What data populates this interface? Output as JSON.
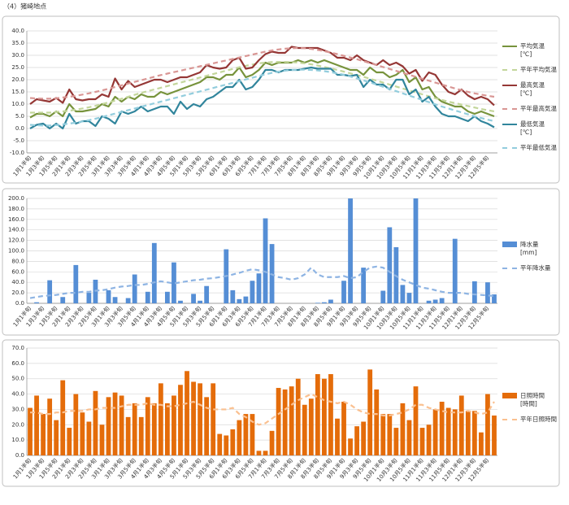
{
  "page_title": "（4）猪崎地点",
  "chart_data": [
    {
      "type": "line",
      "grid": true,
      "categories": [
        "1月1半旬",
        null,
        "1月3半旬",
        null,
        "1月5半旬",
        null,
        "2月1半旬",
        null,
        "2月3半旬",
        null,
        "2月5半旬",
        null,
        "3月1半旬",
        null,
        "3月3半旬",
        null,
        "3月5半旬",
        null,
        "4月1半旬",
        null,
        "4月3半旬",
        null,
        "4月5半旬",
        null,
        "5月1半旬",
        null,
        "5月3半旬",
        null,
        "5月5半旬",
        null,
        "6月1半旬",
        null,
        "6月3半旬",
        null,
        "6月5半旬",
        null,
        "7月1半旬",
        null,
        "7月3半旬",
        null,
        "7月5半旬",
        null,
        "8月1半旬",
        null,
        "8月3半旬",
        null,
        "8月5半旬",
        null,
        "9月1半旬",
        null,
        "9月3半旬",
        null,
        "9月5半旬",
        null,
        "10月1半旬",
        null,
        "10月3半旬",
        null,
        "10月5半旬",
        null,
        "11月1半旬",
        null,
        "11月3半旬",
        null,
        "11月5半旬",
        null,
        "12月1半旬",
        null,
        "12月3半旬",
        null,
        "12月5半旬",
        null
      ],
      "ylim": [
        -10,
        40
      ],
      "yticks": [
        {
          "value": -10,
          "label": "-10.0"
        },
        {
          "value": -5,
          "label": "-5.0"
        },
        {
          "value": 0,
          "label": "0.0"
        },
        {
          "value": 5,
          "label": "5.0"
        },
        {
          "value": 10,
          "label": "10.0"
        },
        {
          "value": 15,
          "label": "15.0"
        },
        {
          "value": 20,
          "label": "20.0"
        },
        {
          "value": 25,
          "label": "25.0"
        },
        {
          "value": 30,
          "label": "30.0"
        },
        {
          "value": 35,
          "label": "35.0"
        },
        {
          "value": 40,
          "label": "40.0"
        }
      ],
      "series": [
        {
          "name": "平均気温\n[℃]",
          "type": "line",
          "dashed": false,
          "color": "#77933c",
          "values": [
            4.5,
            6,
            6,
            5,
            7,
            5,
            10,
            7,
            7,
            7.5,
            8,
            10,
            9,
            13,
            11,
            13,
            12,
            14,
            13,
            13,
            15,
            14,
            15,
            16,
            17,
            18,
            19,
            21,
            21,
            20,
            22,
            22,
            25,
            21,
            22,
            24,
            27,
            26,
            27,
            27,
            27,
            28,
            27,
            28,
            27,
            28,
            27,
            26,
            25,
            24,
            24,
            22,
            25,
            23,
            23,
            21,
            22,
            24,
            19,
            21,
            16,
            17,
            13,
            11,
            10,
            9,
            9,
            7,
            6,
            7,
            6,
            5
          ]
        },
        {
          "name": "平年平均気温",
          "type": "line",
          "dashed": true,
          "color": "#c3d69b",
          "values": [
            6.5,
            6.5,
            6.5,
            6.5,
            6.8,
            7,
            7.3,
            7.7,
            8.2,
            8.7,
            9.3,
            10,
            10.7,
            11.4,
            12.2,
            13,
            13.8,
            14.6,
            15.3,
            16,
            16.7,
            17.4,
            18.1,
            18.8,
            19.5,
            20.2,
            20.9,
            21.6,
            22.3,
            23,
            23.7,
            24.4,
            25.1,
            25.7,
            26.2,
            26.7,
            27,
            27.2,
            27.3,
            27.3,
            27.2,
            27,
            26.7,
            26.3,
            25.8,
            25.2,
            24.6,
            24,
            23.3,
            22.6,
            21.9,
            21.2,
            20.4,
            19.6,
            18.8,
            18,
            17.2,
            16.4,
            15.6,
            14.8,
            14,
            13.2,
            12.4,
            11.7,
            11,
            10.4,
            9.8,
            9.2,
            8.6,
            8,
            7.5,
            7
          ]
        },
        {
          "name": "最高気温\n[℃]",
          "type": "line",
          "dashed": false,
          "color": "#953735",
          "values": [
            10,
            12,
            11.5,
            11,
            12.5,
            10.5,
            16,
            12,
            11.5,
            12,
            12,
            14,
            13,
            20.5,
            16,
            19.5,
            17,
            18,
            19,
            20,
            20,
            19,
            20,
            21,
            21,
            22,
            23,
            26,
            25,
            24.5,
            25,
            28,
            29,
            24.5,
            25,
            28,
            30.5,
            31.5,
            31,
            31,
            33.5,
            33,
            33,
            33,
            33,
            32,
            31,
            29,
            29,
            28,
            30,
            28,
            27,
            26,
            28,
            26,
            27,
            25.5,
            22.5,
            24,
            19.5,
            23,
            22,
            18,
            15,
            14,
            16,
            13.5,
            12,
            13,
            12,
            9.5
          ]
        },
        {
          "name": "平年最高気温",
          "type": "line",
          "dashed": true,
          "color": "#d99694",
          "values": [
            12.5,
            12.3,
            12.2,
            12.2,
            12.4,
            12.7,
            13,
            13.4,
            13.9,
            14.4,
            15,
            15.6,
            16.3,
            17,
            17.7,
            18.4,
            19.1,
            19.8,
            20.5,
            21.2,
            21.9,
            22.5,
            23.1,
            23.7,
            24.3,
            24.9,
            25.5,
            26.1,
            26.7,
            27.3,
            27.9,
            28.5,
            29.1,
            29.7,
            30.3,
            30.9,
            31.5,
            32,
            32.4,
            32.7,
            32.9,
            33,
            32.9,
            32.6,
            32.2,
            31.7,
            31.1,
            30.5,
            29.8,
            29.1,
            28.4,
            27.6,
            26.8,
            26,
            25.2,
            24.4,
            23.6,
            22.8,
            22,
            21.2,
            20.4,
            19.6,
            18.8,
            18,
            17.2,
            16.4,
            15.7,
            15,
            14.4,
            13.9,
            13.4,
            13
          ]
        },
        {
          "name": "最低気温\n[℃]",
          "type": "line",
          "dashed": false,
          "color": "#31859c",
          "values": [
            0,
            1.5,
            2,
            0,
            2,
            0,
            6,
            2,
            3,
            3,
            1,
            5,
            4,
            2,
            7,
            6,
            7,
            9,
            7,
            8,
            9,
            9,
            6,
            11,
            8,
            10,
            9,
            12,
            13,
            15,
            17,
            17,
            20,
            16,
            17,
            20,
            24,
            24,
            23,
            24,
            24,
            24,
            24.5,
            25,
            24.5,
            24.5,
            24.5,
            22,
            22,
            21.5,
            22,
            17,
            20,
            18,
            18,
            16,
            20,
            20,
            14,
            16,
            11,
            13,
            9,
            6,
            5,
            5,
            4,
            3,
            5,
            3,
            2,
            0.5
          ]
        },
        {
          "name": "平年最低気温",
          "type": "line",
          "dashed": true,
          "color": "#93cddd",
          "values": [
            1.5,
            1.3,
            1.2,
            1.2,
            1.4,
            1.7,
            2,
            2.4,
            2.9,
            3.4,
            4,
            4.7,
            5.4,
            6.1,
            6.8,
            7.5,
            8.2,
            8.9,
            9.6,
            10.3,
            11,
            11.7,
            12.4,
            13.1,
            13.8,
            14.5,
            15.2,
            15.9,
            16.6,
            17.3,
            18,
            18.7,
            19.4,
            20.1,
            20.8,
            21.5,
            22.2,
            22.8,
            23.3,
            23.7,
            24,
            24.1,
            24.1,
            24,
            23.8,
            23.5,
            23.1,
            22.6,
            22,
            21.3,
            20.5,
            19.7,
            18.9,
            18,
            17.1,
            16.2,
            15.3,
            14.4,
            13.5,
            12.6,
            11.7,
            10.8,
            9.9,
            9,
            8.2,
            7.4,
            6.6,
            5.8,
            5,
            4.3,
            3.6,
            3
          ]
        }
      ]
    },
    {
      "type": "bar",
      "grid": true,
      "categories": [
        "1月1半旬",
        null,
        "1月3半旬",
        null,
        "1月5半旬",
        null,
        "2月1半旬",
        null,
        "2月3半旬",
        null,
        "2月5半旬",
        null,
        "3月1半旬",
        null,
        "3月3半旬",
        null,
        "3月5半旬",
        null,
        "4月1半旬",
        null,
        "4月3半旬",
        null,
        "4月5半旬",
        null,
        "5月1半旬",
        null,
        "5月3半旬",
        null,
        "5月5半旬",
        null,
        "6月1半旬",
        null,
        "6月3半旬",
        null,
        "6月5半旬",
        null,
        "7月1半旬",
        null,
        "7月3半旬",
        null,
        "7月5半旬",
        null,
        "8月1半旬",
        null,
        "8月3半旬",
        null,
        "8月5半旬",
        null,
        "9月1半旬",
        null,
        "9月3半旬",
        null,
        "9月5半旬",
        null,
        "10月1半旬",
        null,
        "10月3半旬",
        null,
        "10月5半旬",
        null,
        "11月1半旬",
        null,
        "11月3半旬",
        null,
        "11月5半旬",
        null,
        "12月1半旬",
        null,
        "12月3半旬",
        null,
        "12月5半旬",
        null
      ],
      "ylim": [
        0,
        200
      ],
      "yticks": [
        {
          "value": 0,
          "label": "0.0"
        },
        {
          "value": 20,
          "label": "20.0"
        },
        {
          "value": 40,
          "label": "40.0"
        },
        {
          "value": 60,
          "label": "60.0"
        },
        {
          "value": 80,
          "label": "80.0"
        },
        {
          "value": 100,
          "label": "100.0"
        },
        {
          "value": 120,
          "label": "120.0"
        },
        {
          "value": 140,
          "label": "140.0"
        },
        {
          "value": 160,
          "label": "160.0"
        },
        {
          "value": 180,
          "label": "180.0"
        },
        {
          "value": 200,
          "label": "200.0"
        }
      ],
      "series": [
        {
          "name": "降水量\n[mm]",
          "type": "bar",
          "color": "#558ed5",
          "values": [
            0,
            2,
            0,
            44,
            0,
            12,
            0,
            73,
            0,
            20,
            45,
            0,
            25,
            12,
            0,
            10,
            55,
            0,
            22,
            115,
            0,
            22,
            78,
            5,
            0,
            18,
            5,
            33,
            0,
            0,
            103,
            25,
            8,
            13,
            43,
            57,
            162,
            113,
            0,
            0,
            0,
            0,
            0,
            0,
            1,
            2,
            7,
            0,
            43,
            200,
            0,
            68,
            0,
            0,
            24,
            145,
            107,
            35,
            20,
            200,
            0,
            5,
            7,
            10,
            0,
            123,
            0,
            0,
            42,
            0,
            40,
            17
          ]
        },
        {
          "name": "平年降水量",
          "type": "line",
          "dashed": true,
          "color": "#8eb4e3",
          "values": [
            10,
            12,
            14,
            15,
            16,
            18,
            20,
            20,
            22,
            22,
            24,
            25,
            27,
            30,
            32,
            33,
            35,
            35,
            37,
            40,
            42,
            40,
            38,
            40,
            42,
            44,
            45,
            47,
            48,
            50,
            52,
            55,
            58,
            62,
            65,
            63,
            60,
            55,
            50,
            48,
            45,
            48,
            55,
            68,
            55,
            50,
            50,
            50,
            52,
            48,
            50,
            60,
            68,
            70,
            68,
            60,
            52,
            45,
            40,
            35,
            30,
            28,
            25,
            22,
            20,
            20,
            20,
            18,
            17,
            16,
            15,
            14
          ]
        }
      ]
    },
    {
      "type": "bar",
      "grid": true,
      "categories": [
        "1月1半旬",
        null,
        "1月3半旬",
        null,
        "1月5半旬",
        null,
        "2月1半旬",
        null,
        "2月3半旬",
        null,
        "2月5半旬",
        null,
        "3月1半旬",
        null,
        "3月3半旬",
        null,
        "3月5半旬",
        null,
        "4月1半旬",
        null,
        "4月3半旬",
        null,
        "4月5半旬",
        null,
        "5月1半旬",
        null,
        "5月3半旬",
        null,
        "5月5半旬",
        null,
        "6月1半旬",
        null,
        "6月3半旬",
        null,
        "6月5半旬",
        null,
        "7月1半旬",
        null,
        "7月3半旬",
        null,
        "7月5半旬",
        null,
        "8月1半旬",
        null,
        "8月3半旬",
        null,
        "8月5半旬",
        null,
        "9月1半旬",
        null,
        "9月3半旬",
        null,
        "9月5半旬",
        null,
        "10月1半旬",
        null,
        "10月3半旬",
        null,
        "10月5半旬",
        null,
        "11月1半旬",
        null,
        "11月3半旬",
        null,
        "11月5半旬",
        null,
        "12月1半旬",
        null,
        "12月3半旬",
        null,
        "12月5半旬",
        null
      ],
      "ylim": [
        0,
        70
      ],
      "yticks": [
        {
          "value": 0,
          "label": "0.0"
        },
        {
          "value": 10,
          "label": "10.0"
        },
        {
          "value": 20,
          "label": "20.0"
        },
        {
          "value": 30,
          "label": "30.0"
        },
        {
          "value": 40,
          "label": "40.0"
        },
        {
          "value": 50,
          "label": "50.0"
        },
        {
          "value": 60,
          "label": "60.0"
        },
        {
          "value": 70,
          "label": "70.0"
        }
      ],
      "series": [
        {
          "name": "日照時間\n[時間]",
          "type": "bar",
          "color": "#e46c0a",
          "values": [
            31,
            39,
            27,
            37,
            23,
            49,
            18,
            40,
            28,
            22,
            42,
            20,
            38,
            41,
            39,
            25,
            34,
            25,
            38,
            34,
            47,
            34,
            39,
            46,
            55,
            48,
            47,
            38,
            47,
            14,
            13,
            17,
            23,
            27,
            27,
            3,
            3,
            16,
            44,
            43,
            45,
            50,
            33,
            37,
            53,
            50,
            53,
            24,
            35,
            11,
            19,
            22,
            56,
            43,
            27,
            27,
            18,
            34,
            23,
            45,
            18,
            20,
            30,
            35,
            31,
            30,
            39,
            29,
            29,
            15,
            40,
            26
          ]
        },
        {
          "name": "平年日照時間",
          "type": "line",
          "dashed": true,
          "color": "#fac090",
          "values": [
            28,
            28,
            27,
            27,
            28,
            28,
            29,
            29,
            29,
            30,
            30,
            31,
            31,
            31,
            32,
            33,
            33,
            33,
            34,
            33,
            33,
            32,
            32,
            33,
            34,
            35,
            33,
            31,
            30,
            30,
            30,
            31,
            27,
            25,
            22,
            20,
            21,
            24,
            27,
            30,
            33,
            36,
            38,
            40,
            38,
            36,
            35,
            34,
            35,
            33,
            30,
            28,
            27,
            27,
            26,
            26,
            27,
            28,
            30,
            33,
            33,
            31,
            30,
            29,
            28,
            28,
            28,
            29,
            28,
            27,
            28,
            35
          ]
        }
      ]
    }
  ]
}
